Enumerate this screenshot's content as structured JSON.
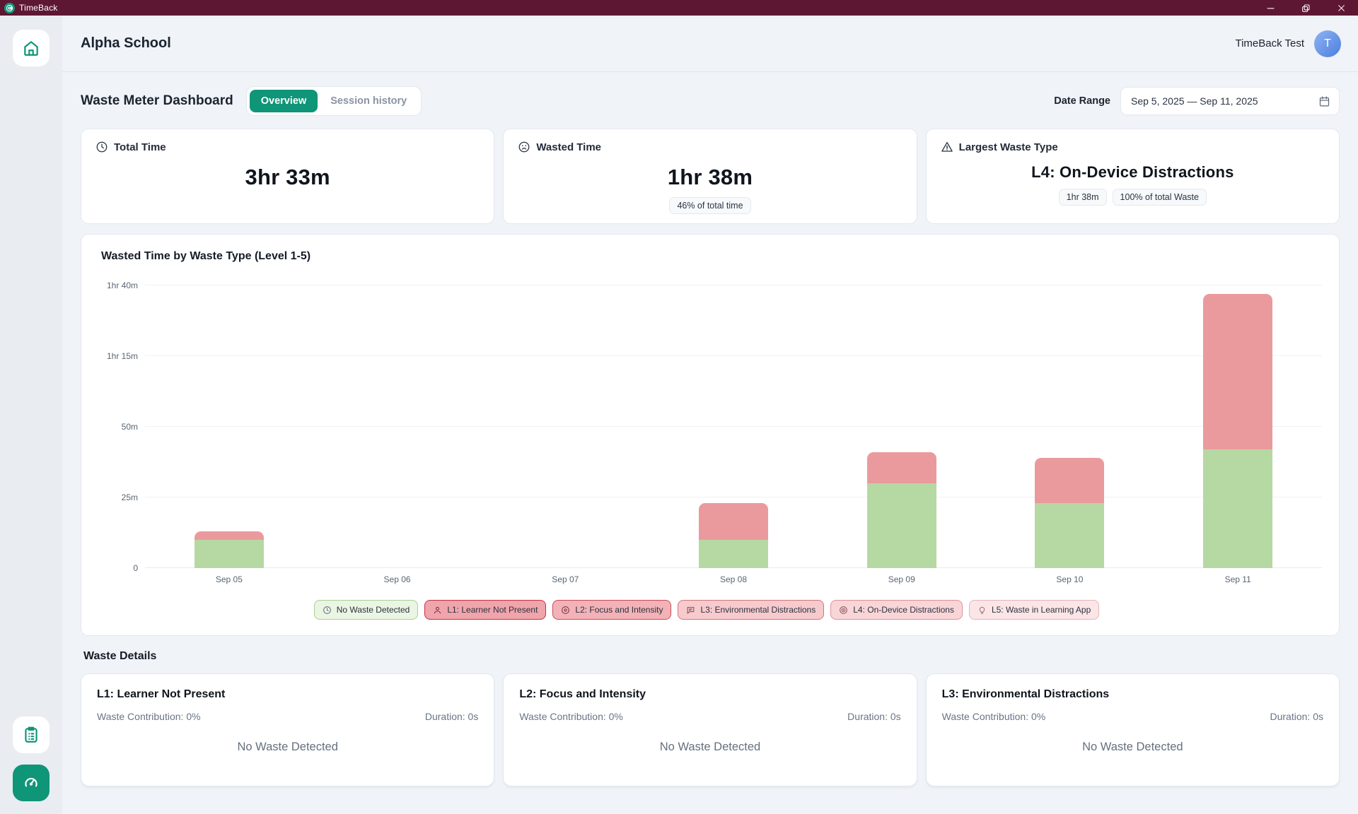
{
  "titlebar": {
    "app_name": "TimeBack"
  },
  "header": {
    "school_name": "Alpha School",
    "user_name": "TimeBack Test",
    "avatar_letter": "T"
  },
  "dashboard": {
    "title": "Waste Meter Dashboard",
    "tabs": {
      "overview": "Overview",
      "session_history": "Session history"
    },
    "date_range_label": "Date Range",
    "date_range_value": "Sep 5, 2025 — Sep 11, 2025"
  },
  "stats": {
    "total_time": {
      "title": "Total Time",
      "value": "3hr 33m"
    },
    "wasted_time": {
      "title": "Wasted Time",
      "value": "1hr 38m",
      "badge": "46% of total time"
    },
    "largest_waste": {
      "title": "Largest Waste Type",
      "value": "L4: On-Device Distractions",
      "badge_duration": "1hr 38m",
      "badge_percent": "100% of total Waste"
    }
  },
  "chart_data": {
    "type": "bar",
    "stacked": true,
    "title": "Wasted Time by Waste Type (Level 1-5)",
    "categories": [
      "Sep 05",
      "Sep 06",
      "Sep 07",
      "Sep 08",
      "Sep 09",
      "Sep 10",
      "Sep 11"
    ],
    "series": [
      {
        "name": "No Waste Detected",
        "color": "#b6d8a3",
        "values_minutes": [
          10,
          0,
          0,
          10,
          30,
          23,
          42
        ]
      },
      {
        "name": "L4: On-Device Distractions",
        "color": "#ea9a9d",
        "values_minutes": [
          3,
          0,
          0,
          13,
          11,
          16,
          55
        ]
      }
    ],
    "y_ticks": [
      {
        "label": "0",
        "minutes": 0
      },
      {
        "label": "25m",
        "minutes": 25
      },
      {
        "label": "50m",
        "minutes": 50
      },
      {
        "label": "1hr 15m",
        "minutes": 75
      },
      {
        "label": "1hr 40m",
        "minutes": 100
      }
    ],
    "ylim_minutes": [
      0,
      100
    ],
    "grid": true,
    "legend_position": "bottom",
    "legend": [
      {
        "label": "No Waste Detected",
        "icon": "clock",
        "bg": "#ebf5e3",
        "border": "#a9cf94",
        "icon_color": "#5f6b77"
      },
      {
        "label": "L1: Learner Not Present",
        "icon": "user",
        "bg": "#f0a4ab",
        "border": "#c2323e",
        "icon_color": "#6d2730"
      },
      {
        "label": "L2: Focus and Intensity",
        "icon": "disc",
        "bg": "#f3b2b8",
        "border": "#c94a52",
        "icon_color": "#74323a"
      },
      {
        "label": "L3: Environmental Distractions",
        "icon": "message",
        "bg": "#f7cacd",
        "border": "#d3747b",
        "icon_color": "#80454b"
      },
      {
        "label": "L4: On-Device Distractions",
        "icon": "target",
        "bg": "#f9d5d7",
        "border": "#dc9296",
        "icon_color": "#8a5458"
      },
      {
        "label": "L5: Waste in Learning App",
        "icon": "bulb",
        "bg": "#fbe5e7",
        "border": "#e6b4b8",
        "icon_color": "#99696c"
      }
    ]
  },
  "waste_details": {
    "title": "Waste Details",
    "cards": [
      {
        "title": "L1: Learner Not Present",
        "contribution": "Waste Contribution: 0%",
        "duration": "Duration: 0s",
        "empty": "No Waste Detected"
      },
      {
        "title": "L2: Focus and Intensity",
        "contribution": "Waste Contribution: 0%",
        "duration": "Duration: 0s",
        "empty": "No Waste Detected"
      },
      {
        "title": "L3: Environmental Distractions",
        "contribution": "Waste Contribution: 0%",
        "duration": "Duration: 0s",
        "empty": "No Waste Detected"
      }
    ]
  }
}
